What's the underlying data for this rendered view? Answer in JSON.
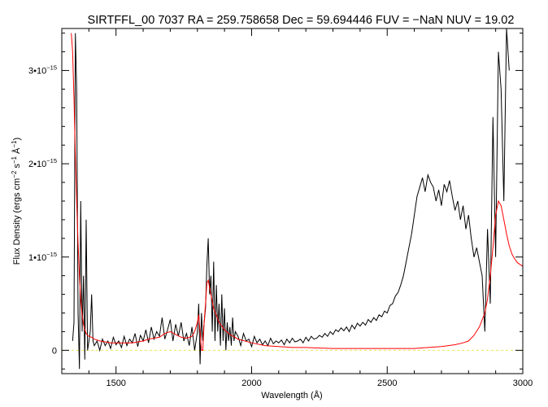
{
  "chart_data": {
    "type": "line",
    "title": "SIRTFFL_00 7037 RA = 259.758658 Dec =  59.694446 FUV =  −NaN NUV = 19.02",
    "xlabel": "Wavelength (Å)",
    "ylabel": {
      "prefix": "Flux Density (ergs cm",
      "exp1": "−2",
      "mid1": " s",
      "exp2": "−1",
      "mid2": " Å",
      "exp3": "−1",
      "suffix": ")"
    },
    "xlim": [
      1300,
      3000
    ],
    "ylim": [
      -0.25,
      3.45
    ],
    "y_scale_note": "x1e-15",
    "x_ticks": [
      {
        "value": 1500,
        "label": "1500"
      },
      {
        "value": 2000,
        "label": "2000"
      },
      {
        "value": 2500,
        "label": "2500"
      },
      {
        "value": 3000,
        "label": "3000"
      }
    ],
    "y_ticks": [
      {
        "value": 0,
        "mantissa": "0",
        "exp": ""
      },
      {
        "value": 1,
        "mantissa": "1•10",
        "exp": "−15"
      },
      {
        "value": 2,
        "mantissa": "2•10",
        "exp": "−15"
      },
      {
        "value": 3,
        "mantissa": "3•10",
        "exp": "−15"
      }
    ],
    "grid": false,
    "colors": {
      "spectrum": "#000000",
      "model": "#ff0000",
      "zero": "#e8e85a"
    },
    "series": [
      {
        "key": "spectrum",
        "x": [
          1340,
          1345,
          1350,
          1355,
          1360,
          1365,
          1370,
          1375,
          1380,
          1385,
          1390,
          1395,
          1400,
          1405,
          1410,
          1415,
          1420,
          1430,
          1440,
          1450,
          1460,
          1470,
          1480,
          1490,
          1500,
          1510,
          1520,
          1530,
          1540,
          1550,
          1560,
          1570,
          1580,
          1590,
          1600,
          1610,
          1620,
          1630,
          1640,
          1650,
          1660,
          1670,
          1680,
          1690,
          1700,
          1710,
          1720,
          1730,
          1740,
          1750,
          1760,
          1770,
          1780,
          1790,
          1800,
          1805,
          1810,
          1815,
          1820,
          1825,
          1830,
          1835,
          1840,
          1845,
          1850,
          1855,
          1860,
          1865,
          1870,
          1875,
          1880,
          1885,
          1890,
          1895,
          1900,
          1905,
          1910,
          1915,
          1920,
          1925,
          1930,
          1935,
          1940,
          1950,
          1960,
          1970,
          1980,
          1990,
          2000,
          2010,
          2020,
          2030,
          2040,
          2050,
          2060,
          2070,
          2080,
          2090,
          2100,
          2110,
          2120,
          2130,
          2140,
          2150,
          2160,
          2170,
          2180,
          2190,
          2200,
          2210,
          2220,
          2230,
          2240,
          2250,
          2260,
          2270,
          2280,
          2290,
          2300,
          2310,
          2320,
          2330,
          2340,
          2350,
          2360,
          2370,
          2380,
          2390,
          2400,
          2410,
          2420,
          2430,
          2440,
          2450,
          2460,
          2470,
          2480,
          2490,
          2500,
          2510,
          2520,
          2530,
          2540,
          2550,
          2560,
          2570,
          2580,
          2590,
          2600,
          2610,
          2620,
          2630,
          2640,
          2650,
          2660,
          2670,
          2680,
          2690,
          2700,
          2710,
          2720,
          2730,
          2740,
          2750,
          2760,
          2770,
          2780,
          2790,
          2800,
          2810,
          2820,
          2830,
          2840,
          2850,
          2860,
          2870,
          2880,
          2890,
          2900,
          2910,
          2920,
          2930,
          2940,
          2950
        ],
        "y": [
          0.1,
          0.3,
          3.4,
          2.8,
          0.4,
          -0.2,
          1.6,
          0.2,
          0.8,
          -0.1,
          1.4,
          0.0,
          0.1,
          0.2,
          0.6,
          0.1,
          0.05,
          0.1,
          0.0,
          0.12,
          0.05,
          0.1,
          0.02,
          0.14,
          0.06,
          0.1,
          0.03,
          0.15,
          0.05,
          0.12,
          0.08,
          0.18,
          0.04,
          0.16,
          0.1,
          0.22,
          0.08,
          0.25,
          0.12,
          0.2,
          0.15,
          0.35,
          0.12,
          0.22,
          0.33,
          0.1,
          0.28,
          0.15,
          0.3,
          0.1,
          0.18,
          0.05,
          0.25,
          0.0,
          0.2,
          0.5,
          -0.15,
          0.4,
          0.1,
          0.3,
          0.45,
          0.9,
          1.2,
          0.6,
          0.8,
          0.2,
          0.95,
          0.1,
          0.7,
          0.2,
          0.5,
          0.05,
          0.6,
          0.1,
          0.45,
          0.0,
          0.3,
          0.1,
          0.25,
          0.05,
          0.35,
          0.1,
          0.2,
          0.15,
          0.05,
          0.18,
          0.1,
          0.12,
          0.04,
          0.15,
          0.08,
          0.12,
          0.06,
          0.1,
          0.05,
          0.13,
          0.07,
          0.1,
          0.08,
          0.11,
          0.06,
          0.12,
          0.08,
          0.13,
          0.09,
          0.1,
          0.12,
          0.08,
          0.14,
          0.1,
          0.15,
          0.12,
          0.13,
          0.16,
          0.14,
          0.18,
          0.15,
          0.2,
          0.17,
          0.22,
          0.2,
          0.24,
          0.21,
          0.25,
          0.2,
          0.27,
          0.23,
          0.29,
          0.26,
          0.3,
          0.27,
          0.33,
          0.3,
          0.35,
          0.32,
          0.38,
          0.36,
          0.42,
          0.4,
          0.48,
          0.5,
          0.58,
          0.62,
          0.7,
          0.8,
          0.95,
          1.1,
          1.25,
          1.45,
          1.65,
          1.75,
          1.85,
          1.7,
          1.88,
          1.8,
          1.75,
          1.6,
          1.72,
          1.55,
          1.78,
          1.7,
          1.82,
          1.65,
          1.5,
          1.6,
          1.4,
          1.55,
          1.3,
          1.45,
          1.2,
          1.0,
          1.1,
          0.95,
          0.8,
          0.2,
          1.3,
          0.5,
          2.5,
          1.0,
          3.2,
          2.8,
          1.6,
          3.45,
          3.0
        ]
      },
      {
        "key": "model",
        "x": [
          1335,
          1340,
          1345,
          1350,
          1355,
          1360,
          1365,
          1370,
          1375,
          1380,
          1385,
          1390,
          1395,
          1400,
          1410,
          1420,
          1440,
          1460,
          1480,
          1500,
          1520,
          1540,
          1560,
          1580,
          1600,
          1620,
          1640,
          1660,
          1680,
          1700,
          1720,
          1740,
          1760,
          1780,
          1790,
          1800,
          1805,
          1810,
          1815,
          1820,
          1825,
          1830,
          1835,
          1840,
          1850,
          1860,
          1880,
          1900,
          1920,
          1950,
          2000,
          2050,
          2100,
          2150,
          2200,
          2300,
          2400,
          2500,
          2600,
          2650,
          2700,
          2750,
          2780,
          2800,
          2820,
          2840,
          2860,
          2870,
          2880,
          2890,
          2900,
          2910,
          2920,
          2930,
          2940,
          2950,
          2960,
          2970,
          2980,
          2990,
          3000
        ],
        "y": [
          3.4,
          3.2,
          2.7,
          2.1,
          1.6,
          1.15,
          0.8,
          0.55,
          0.38,
          0.28,
          0.22,
          0.18,
          0.16,
          0.15,
          0.14,
          0.12,
          0.1,
          0.09,
          0.08,
          0.08,
          0.08,
          0.08,
          0.08,
          0.09,
          0.1,
          0.12,
          0.13,
          0.14,
          0.18,
          0.2,
          0.17,
          0.14,
          0.13,
          0.15,
          0.2,
          0.3,
          0.38,
          0.2,
          0.0,
          0.0,
          0.3,
          0.5,
          0.72,
          0.75,
          0.6,
          0.45,
          0.3,
          0.22,
          0.17,
          0.12,
          0.08,
          0.05,
          0.04,
          0.03,
          0.03,
          0.02,
          0.02,
          0.02,
          0.02,
          0.03,
          0.04,
          0.06,
          0.08,
          0.1,
          0.16,
          0.25,
          0.4,
          0.55,
          0.8,
          1.1,
          1.45,
          1.6,
          1.55,
          1.4,
          1.25,
          1.12,
          1.03,
          0.98,
          0.94,
          0.92,
          0.9
        ]
      },
      {
        "key": "zero",
        "x": [
          1300,
          3000
        ],
        "y": [
          0,
          0
        ]
      }
    ]
  }
}
